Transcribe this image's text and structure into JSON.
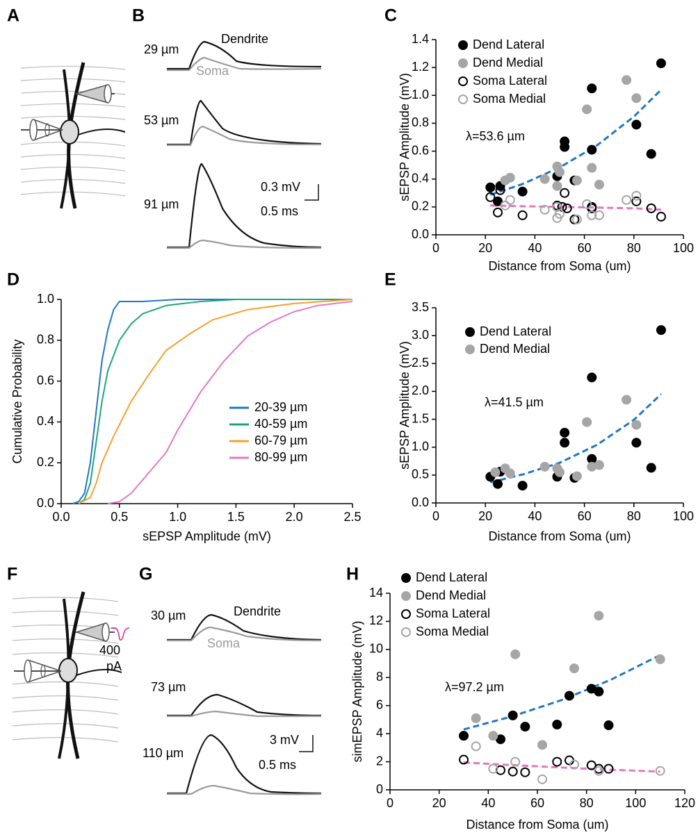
{
  "panel_letters": [
    "A",
    "B",
    "C",
    "D",
    "E",
    "F",
    "G",
    "H"
  ],
  "traces": [
    {
      "labels": [
        "29 µm",
        "53 µm",
        "91 µm"
      ],
      "dendrite": "Dendrite",
      "soma": "Soma",
      "scale_y": "0.3 mV",
      "scale_x": "0.5 ms"
    },
    {
      "labels": [
        "30 µm",
        "73 µm",
        "110 µm"
      ],
      "dendrite": "Dendrite",
      "soma": "Soma",
      "scale_y": "3 mV",
      "scale_x": "0.5 ms"
    }
  ],
  "stimulus": {
    "amplitude": "400",
    "unit": "pA"
  },
  "chart_data": [
    {
      "type": "scatter",
      "xlabel": "Distance from Soma (um)",
      "ylabel": "sEPSP Amplitude  (mV)",
      "annotation": "λ=53.6 µm",
      "xlim": [
        0,
        100
      ],
      "xticks": [
        0,
        20,
        40,
        60,
        80,
        100
      ],
      "ylim": [
        0,
        1.4
      ],
      "yticks": [
        {
          "value": 0,
          "label": "0.0"
        },
        0.2,
        0.4,
        0.6,
        0.8,
        {
          "value": 1,
          "label": "1.0"
        },
        1.2,
        1.4
      ],
      "legend": "upper left",
      "series": [
        {
          "name": "Dend Lateral",
          "color": "#000000",
          "filled": true,
          "x": [
            22,
            25,
            26,
            35,
            49,
            52,
            52,
            56,
            63,
            63,
            81,
            87,
            91
          ],
          "values": [
            0.34,
            0.24,
            0.35,
            0.31,
            0.42,
            0.67,
            0.63,
            0.39,
            1.05,
            0.61,
            0.79,
            0.58,
            1.23
          ]
        },
        {
          "name": "Dend Medial",
          "color": "#a6a6a6",
          "filled": true,
          "x": [
            28,
            30,
            44,
            49,
            49,
            50,
            57,
            61,
            63,
            66,
            77,
            81
          ],
          "values": [
            0.39,
            0.41,
            0.4,
            0.49,
            0.35,
            0.45,
            0.39,
            0.9,
            0.48,
            0.36,
            1.11,
            0.98
          ]
        },
        {
          "name": "Soma Lateral",
          "color": "#000000",
          "filled": false,
          "x": [
            22,
            25,
            26,
            35,
            49,
            51,
            52,
            53,
            56,
            63,
            63,
            81,
            87,
            91
          ],
          "values": [
            0.27,
            0.16,
            0.32,
            0.14,
            0.21,
            0.2,
            0.3,
            0.19,
            0.11,
            0.2,
            0.19,
            0.24,
            0.19,
            0.13
          ]
        },
        {
          "name": "Soma Medial",
          "color": "#a6a6a6",
          "filled": false,
          "x": [
            28,
            30,
            44,
            49,
            49,
            50,
            57,
            61,
            63,
            66,
            77,
            81
          ],
          "values": [
            0.21,
            0.25,
            0.18,
            0.12,
            0.2,
            0.15,
            0.11,
            0.22,
            0.14,
            0.14,
            0.25,
            0.28
          ]
        }
      ],
      "fits": [
        {
          "color": "#1f77c4",
          "x": [
            22,
            35,
            50,
            65,
            80,
            91
          ],
          "values": [
            0.287,
            0.364,
            0.483,
            0.64,
            0.848,
            1.04
          ]
        },
        {
          "color": "#e377c2",
          "x": [
            22,
            35,
            50,
            65,
            80,
            91
          ],
          "values": [
            0.21,
            0.205,
            0.2,
            0.195,
            0.19,
            0.18
          ]
        }
      ]
    },
    {
      "type": "line",
      "xlabel": "sEPSP Amplitude (mV)",
      "ylabel": "Cumulative Probability",
      "xlim": [
        0,
        2.5
      ],
      "xticks": [
        {
          "value": 0,
          "label": "0.0"
        },
        0.5,
        {
          "value": 1,
          "label": "1.0"
        },
        1.5,
        {
          "value": 2,
          "label": "2.0"
        },
        2.5
      ],
      "ylim": [
        0,
        1
      ],
      "yticks": [
        {
          "value": 0,
          "label": "0.0"
        },
        0.2,
        0.4,
        0.6,
        0.8,
        {
          "value": 1,
          "label": "1.0"
        }
      ],
      "legend": "lower right",
      "series": [
        {
          "name": "20-39 µm",
          "color": "#1f77c4",
          "x": [
            0.1,
            0.15,
            0.2,
            0.25,
            0.3,
            0.35,
            0.4,
            0.45,
            0.5,
            0.7,
            1,
            2.5
          ],
          "values": [
            0,
            0.01,
            0.05,
            0.2,
            0.45,
            0.7,
            0.85,
            0.95,
            0.99,
            0.99,
            1,
            1
          ]
        },
        {
          "name": "40-59 µm",
          "color": "#1aa57a",
          "x": [
            0.15,
            0.2,
            0.25,
            0.3,
            0.35,
            0.4,
            0.5,
            0.6,
            0.7,
            0.9,
            1.2,
            1.5,
            2.5
          ],
          "values": [
            0,
            0.02,
            0.1,
            0.3,
            0.5,
            0.65,
            0.8,
            0.88,
            0.93,
            0.97,
            0.99,
            1,
            1
          ]
        },
        {
          "name": "60-79 µm",
          "color": "#f5a02a",
          "x": [
            0.15,
            0.25,
            0.3,
            0.35,
            0.45,
            0.6,
            0.75,
            0.9,
            1.1,
            1.3,
            1.6,
            2,
            2.5
          ],
          "values": [
            0,
            0.03,
            0.1,
            0.2,
            0.33,
            0.5,
            0.63,
            0.75,
            0.83,
            0.9,
            0.95,
            0.98,
            1
          ]
        },
        {
          "name": "80-99 µm",
          "color": "#e377c2",
          "x": [
            0.4,
            0.5,
            0.6,
            0.75,
            0.9,
            1,
            1.2,
            1.4,
            1.6,
            1.8,
            2,
            2.2,
            2.5
          ],
          "values": [
            0,
            0.01,
            0.05,
            0.15,
            0.25,
            0.36,
            0.55,
            0.7,
            0.82,
            0.89,
            0.94,
            0.97,
            0.99
          ]
        }
      ]
    },
    {
      "type": "scatter",
      "xlabel": "Distance from Soma (um)",
      "ylabel": "sEPSP Amplitude  (mV)",
      "annotation": "λ=41.5 µm",
      "xlim": [
        0,
        100
      ],
      "xticks": [
        0,
        20,
        40,
        60,
        80,
        100
      ],
      "ylim": [
        0,
        3.5
      ],
      "yticks": [
        {
          "value": 0,
          "label": "0.0"
        },
        0.5,
        {
          "value": 1,
          "label": "1.0"
        },
        1.5,
        {
          "value": 2,
          "label": "2.0"
        },
        2.5,
        {
          "value": 3,
          "label": "3.0"
        },
        3.5
      ],
      "legend": "upper left",
      "series": [
        {
          "name": "Dend Lateral",
          "color": "#000000",
          "filled": true,
          "x": [
            22,
            25,
            26,
            35,
            49,
            52,
            52,
            56,
            63,
            63,
            81,
            87,
            91
          ],
          "values": [
            0.47,
            0.34,
            0.56,
            0.31,
            0.47,
            1.26,
            1.08,
            0.45,
            2.25,
            0.79,
            1.08,
            0.63,
            3.1
          ]
        },
        {
          "name": "Dend Medial",
          "color": "#a6a6a6",
          "filled": true,
          "x": [
            24,
            28,
            30,
            44,
            49,
            50,
            57,
            61,
            63,
            66,
            77,
            81
          ],
          "values": [
            0.55,
            0.62,
            0.53,
            0.65,
            0.62,
            0.55,
            0.48,
            1.45,
            0.65,
            0.68,
            1.85,
            1.4
          ]
        }
      ],
      "fits": [
        {
          "color": "#1f77c4",
          "x": [
            22,
            35,
            50,
            65,
            80,
            91
          ],
          "values": [
            0.37,
            0.51,
            0.72,
            1.04,
            1.49,
            1.95
          ]
        }
      ]
    },
    {
      "type": "scatter",
      "xlabel": "Distance from Soma (um)",
      "ylabel": "simEPSP Amplitude  (mV)",
      "annotation": "λ=97.2 µm",
      "xlim": [
        0,
        120
      ],
      "xticks": [
        0,
        20,
        40,
        60,
        80,
        100,
        120
      ],
      "ylim": [
        0,
        14
      ],
      "yticks": [
        0,
        2,
        4,
        6,
        8,
        10,
        12,
        14
      ],
      "legend": "upper left",
      "series": [
        {
          "name": "Dend Lateral",
          "color": "#000000",
          "filled": true,
          "x": [
            30,
            45,
            50,
            55,
            68,
            73,
            82,
            85,
            89
          ],
          "values": [
            3.85,
            3.6,
            5.3,
            4.5,
            4.65,
            6.7,
            7.2,
            7.0,
            4.6
          ]
        },
        {
          "name": "Dend Medial",
          "color": "#a6a6a6",
          "filled": true,
          "x": [
            35,
            42,
            51,
            62,
            75,
            85,
            110
          ],
          "values": [
            5.1,
            3.85,
            9.65,
            3.2,
            8.65,
            12.4,
            9.3
          ]
        },
        {
          "name": "Soma Lateral",
          "color": "#000000",
          "filled": false,
          "x": [
            30,
            45,
            50,
            55,
            68,
            73,
            82,
            85,
            89
          ],
          "values": [
            2.15,
            1.4,
            1.3,
            1.25,
            2.0,
            2.1,
            1.75,
            1.5,
            1.5
          ]
        },
        {
          "name": "Soma Medial",
          "color": "#a6a6a6",
          "filled": false,
          "x": [
            35,
            42,
            51,
            62,
            75,
            85,
            110
          ],
          "values": [
            3.1,
            1.5,
            2.0,
            0.75,
            1.8,
            1.35,
            1.35
          ]
        }
      ],
      "fits": [
        {
          "color": "#1f77c4",
          "x": [
            30,
            50,
            70,
            90,
            110
          ],
          "values": [
            4.3,
            5.25,
            6.4,
            7.85,
            9.6
          ]
        },
        {
          "color": "#e377c2",
          "x": [
            30,
            50,
            70,
            90,
            110
          ],
          "values": [
            1.95,
            1.76,
            1.59,
            1.43,
            1.3
          ]
        }
      ]
    }
  ]
}
